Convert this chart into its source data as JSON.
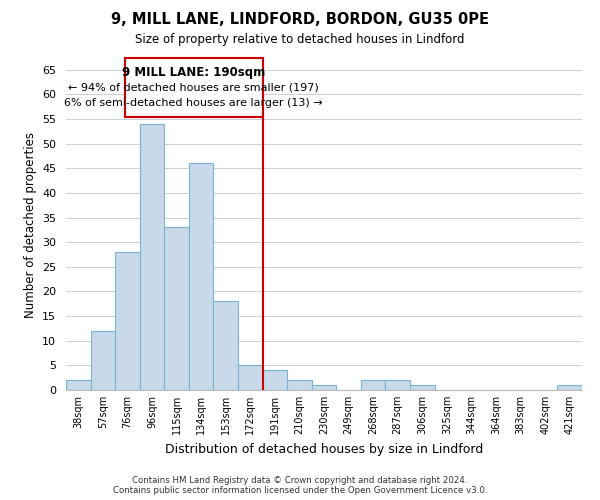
{
  "title": "9, MILL LANE, LINDFORD, BORDON, GU35 0PE",
  "subtitle": "Size of property relative to detached houses in Lindford",
  "xlabel": "Distribution of detached houses by size in Lindford",
  "ylabel": "Number of detached properties",
  "bin_labels": [
    "38sqm",
    "57sqm",
    "76sqm",
    "96sqm",
    "115sqm",
    "134sqm",
    "153sqm",
    "172sqm",
    "191sqm",
    "210sqm",
    "230sqm",
    "249sqm",
    "268sqm",
    "287sqm",
    "306sqm",
    "325sqm",
    "344sqm",
    "364sqm",
    "383sqm",
    "402sqm",
    "421sqm"
  ],
  "bar_values": [
    2,
    12,
    28,
    54,
    33,
    46,
    18,
    5,
    4,
    2,
    1,
    0,
    2,
    2,
    1,
    0,
    0,
    0,
    0,
    0,
    1
  ],
  "bar_color": "#c8daea",
  "bar_edge_color": "#7ab3d0",
  "vline_x_index": 8,
  "vline_color": "#cc0000",
  "annotation_title": "9 MILL LANE: 190sqm",
  "annotation_line1": "← 94% of detached houses are smaller (197)",
  "annotation_line2": "6% of semi-detached houses are larger (13) →",
  "annotation_box_color": "#ffffff",
  "annotation_border_color": "#cc0000",
  "ylim": [
    0,
    67
  ],
  "yticks": [
    0,
    5,
    10,
    15,
    20,
    25,
    30,
    35,
    40,
    45,
    50,
    55,
    60,
    65
  ],
  "footer_line1": "Contains HM Land Registry data © Crown copyright and database right 2024.",
  "footer_line2": "Contains public sector information licensed under the Open Government Licence v3.0.",
  "background_color": "#ffffff",
  "grid_color": "#c8c8c8"
}
